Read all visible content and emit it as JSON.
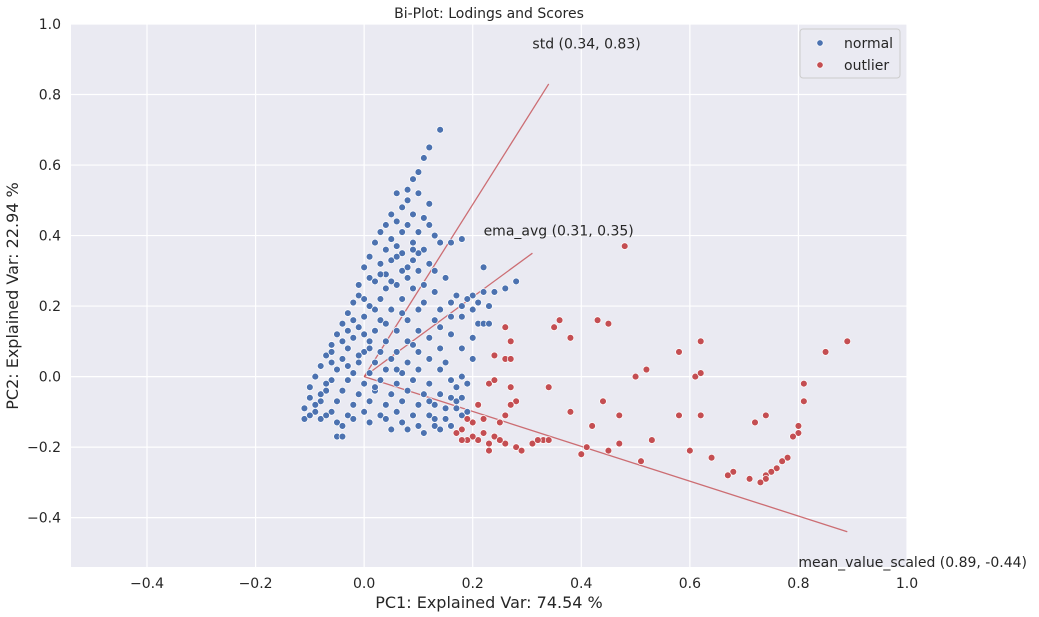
{
  "chart_data": {
    "type": "scatter",
    "title": "Bi-Plot: Lodings and Scores",
    "xlabel": "PC1: Explained Var: 74.54 %",
    "ylabel": "PC2: Explained Var: 22.94 %",
    "xlim": [
      -0.54,
      1.0
    ],
    "ylim": [
      -0.54,
      1.0
    ],
    "xticks": [
      -0.4,
      -0.2,
      0.0,
      0.2,
      0.4,
      0.6,
      0.8,
      1.0
    ],
    "xtick_labels": [
      "−0.4",
      "−0.2",
      "0.0",
      "0.2",
      "0.4",
      "0.6",
      "0.8",
      "1.0"
    ],
    "yticks": [
      -0.4,
      -0.2,
      0.0,
      0.2,
      0.4,
      0.6,
      0.8,
      1.0
    ],
    "ytick_labels": [
      "−0.4",
      "−0.2",
      "0.0",
      "0.2",
      "0.4",
      "0.6",
      "0.8",
      "1.0"
    ],
    "grid": true,
    "background": "#eaeaf2",
    "legend_position": "top-right",
    "series": [
      {
        "name": "normal",
        "color": "#4c72b0",
        "points": [
          [
            0.14,
            0.7
          ],
          [
            0.12,
            0.65
          ],
          [
            0.11,
            0.62
          ],
          [
            0.1,
            0.58
          ],
          [
            0.09,
            0.56
          ],
          [
            0.08,
            0.53
          ],
          [
            0.1,
            0.52
          ],
          [
            0.06,
            0.52
          ],
          [
            0.08,
            0.5
          ],
          [
            0.12,
            0.49
          ],
          [
            0.07,
            0.48
          ],
          [
            0.05,
            0.46
          ],
          [
            0.09,
            0.46
          ],
          [
            0.11,
            0.45
          ],
          [
            0.06,
            0.44
          ],
          [
            0.04,
            0.43
          ],
          [
            0.08,
            0.43
          ],
          [
            0.12,
            0.43
          ],
          [
            0.03,
            0.41
          ],
          [
            0.07,
            0.41
          ],
          [
            0.1,
            0.41
          ],
          [
            0.05,
            0.39
          ],
          [
            0.13,
            0.4
          ],
          [
            0.09,
            0.38
          ],
          [
            0.02,
            0.38
          ],
          [
            0.06,
            0.37
          ],
          [
            0.14,
            0.38
          ],
          [
            0.04,
            0.36
          ],
          [
            0.11,
            0.36
          ],
          [
            0.07,
            0.35
          ],
          [
            0.16,
            0.38
          ],
          [
            0.18,
            0.39
          ],
          [
            0.01,
            0.34
          ],
          [
            0.05,
            0.33
          ],
          [
            0.09,
            0.33
          ],
          [
            0.12,
            0.32
          ],
          [
            0.03,
            0.32
          ],
          [
            0.0,
            0.31
          ],
          [
            0.07,
            0.3
          ],
          [
            0.1,
            0.3
          ],
          [
            0.13,
            0.3
          ],
          [
            0.04,
            0.29
          ],
          [
            0.01,
            0.28
          ],
          [
            0.08,
            0.28
          ],
          [
            0.15,
            0.28
          ],
          [
            0.02,
            0.27
          ],
          [
            0.06,
            0.26
          ],
          [
            0.11,
            0.26
          ],
          [
            -0.01,
            0.26
          ],
          [
            0.04,
            0.25
          ],
          [
            0.09,
            0.25
          ],
          [
            0.13,
            0.24
          ],
          [
            -0.01,
            0.23
          ],
          [
            0.03,
            0.22
          ],
          [
            0.07,
            0.22
          ],
          [
            0.17,
            0.23
          ],
          [
            0.22,
            0.31
          ],
          [
            0.2,
            0.23
          ],
          [
            0.24,
            0.24
          ],
          [
            0.26,
            0.25
          ],
          [
            0.28,
            0.27
          ],
          [
            0.22,
            0.24
          ],
          [
            0.19,
            0.22
          ],
          [
            0.21,
            0.21
          ],
          [
            -0.02,
            0.21
          ],
          [
            0.01,
            0.2
          ],
          [
            0.05,
            0.19
          ],
          [
            0.1,
            0.19
          ],
          [
            0.16,
            0.21
          ],
          [
            0.18,
            0.2
          ],
          [
            0.2,
            0.19
          ],
          [
            0.23,
            0.2
          ],
          [
            -0.03,
            0.18
          ],
          [
            0.0,
            0.17
          ],
          [
            0.03,
            0.16
          ],
          [
            0.08,
            0.16
          ],
          [
            0.13,
            0.16
          ],
          [
            0.16,
            0.17
          ],
          [
            0.18,
            0.17
          ],
          [
            0.21,
            0.15
          ],
          [
            -0.04,
            0.15
          ],
          [
            -0.01,
            0.14
          ],
          [
            0.02,
            0.13
          ],
          [
            0.06,
            0.13
          ],
          [
            0.1,
            0.13
          ],
          [
            0.14,
            0.14
          ],
          [
            0.22,
            0.15
          ],
          [
            0.23,
            0.15
          ],
          [
            -0.05,
            0.12
          ],
          [
            -0.02,
            0.11
          ],
          [
            0.01,
            0.1
          ],
          [
            0.04,
            0.1
          ],
          [
            0.08,
            0.1
          ],
          [
            0.12,
            0.11
          ],
          [
            0.16,
            0.12
          ],
          [
            0.2,
            0.11
          ],
          [
            -0.06,
            0.09
          ],
          [
            -0.03,
            0.08
          ],
          [
            0.0,
            0.07
          ],
          [
            0.03,
            0.07
          ],
          [
            0.06,
            0.07
          ],
          [
            0.1,
            0.07
          ],
          [
            0.14,
            0.08
          ],
          [
            0.18,
            0.08
          ],
          [
            -0.07,
            0.06
          ],
          [
            -0.04,
            0.05
          ],
          [
            -0.01,
            0.04
          ],
          [
            0.02,
            0.04
          ],
          [
            0.05,
            0.05
          ],
          [
            0.08,
            0.04
          ],
          [
            0.12,
            0.05
          ],
          [
            0.2,
            0.05
          ],
          [
            -0.08,
            0.03
          ],
          [
            -0.05,
            0.02
          ],
          [
            -0.02,
            0.01
          ],
          [
            0.01,
            0.01
          ],
          [
            0.04,
            0.02
          ],
          [
            0.07,
            0.01
          ],
          [
            0.1,
            0.02
          ],
          [
            0.14,
            0.02
          ],
          [
            -0.09,
            0.0
          ],
          [
            -0.06,
            -0.01
          ],
          [
            -0.03,
            -0.01
          ],
          [
            0.0,
            -0.02
          ],
          [
            0.03,
            -0.01
          ],
          [
            0.06,
            -0.02
          ],
          [
            0.09,
            -0.01
          ],
          [
            0.12,
            -0.02
          ],
          [
            0.16,
            -0.01
          ],
          [
            0.18,
            0.0
          ],
          [
            0.17,
            -0.03
          ],
          [
            0.19,
            -0.02
          ],
          [
            -0.1,
            -0.03
          ],
          [
            -0.07,
            -0.04
          ],
          [
            -0.04,
            -0.04
          ],
          [
            -0.01,
            -0.05
          ],
          [
            0.02,
            -0.04
          ],
          [
            0.05,
            -0.05
          ],
          [
            0.08,
            -0.04
          ],
          [
            0.11,
            -0.05
          ],
          [
            0.14,
            -0.05
          ],
          [
            0.16,
            -0.06
          ],
          [
            -0.1,
            -0.06
          ],
          [
            -0.08,
            -0.07
          ],
          [
            -0.05,
            -0.07
          ],
          [
            -0.02,
            -0.08
          ],
          [
            0.01,
            -0.07
          ],
          [
            0.04,
            -0.08
          ],
          [
            0.07,
            -0.07
          ],
          [
            0.1,
            -0.08
          ],
          [
            0.13,
            -0.08
          ],
          [
            0.17,
            -0.09
          ],
          [
            -0.11,
            -0.09
          ],
          [
            -0.09,
            -0.1
          ],
          [
            -0.06,
            -0.1
          ],
          [
            -0.03,
            -0.11
          ],
          [
            0.0,
            -0.1
          ],
          [
            0.03,
            -0.11
          ],
          [
            0.06,
            -0.1
          ],
          [
            0.09,
            -0.11
          ],
          [
            0.12,
            -0.11
          ],
          [
            0.15,
            -0.12
          ],
          [
            0.18,
            -0.11
          ],
          [
            -0.11,
            -0.12
          ],
          [
            -0.08,
            -0.12
          ],
          [
            -0.05,
            -0.13
          ],
          [
            -0.02,
            -0.12
          ],
          [
            0.01,
            -0.13
          ],
          [
            0.04,
            -0.12
          ],
          [
            0.07,
            -0.13
          ],
          [
            0.1,
            -0.14
          ],
          [
            0.13,
            -0.14
          ],
          [
            -0.1,
            -0.11
          ],
          [
            -0.07,
            -0.11
          ],
          [
            -0.04,
            -0.14
          ],
          [
            0.05,
            -0.15
          ],
          [
            0.08,
            -0.15
          ],
          [
            0.11,
            -0.16
          ],
          [
            0.14,
            -0.15
          ],
          [
            0.16,
            -0.14
          ],
          [
            -0.05,
            -0.17
          ],
          [
            -0.04,
            -0.17
          ],
          [
            -0.08,
            -0.05
          ],
          [
            -0.06,
            0.04
          ],
          [
            -0.03,
            0.13
          ],
          [
            -0.01,
            0.06
          ],
          [
            0.02,
            -0.03
          ],
          [
            0.15,
            0.04
          ],
          [
            0.12,
            -0.07
          ],
          [
            0.17,
            -0.07
          ],
          [
            0.05,
            0.27
          ],
          [
            0.08,
            0.31
          ],
          [
            0.1,
            0.35
          ],
          [
            0.03,
            0.29
          ],
          [
            0.06,
            0.34
          ],
          [
            0.09,
            0.36
          ],
          [
            0.0,
            0.22
          ],
          [
            0.02,
            0.19
          ],
          [
            -0.02,
            0.16
          ],
          [
            0.04,
            0.15
          ],
          [
            0.11,
            0.21
          ],
          [
            0.14,
            0.19
          ],
          [
            0.07,
            0.18
          ],
          [
            -0.04,
            0.1
          ],
          [
            -0.06,
            0.07
          ],
          [
            0.0,
            0.12
          ],
          [
            0.06,
            0.02
          ],
          [
            0.13,
            -0.12
          ],
          [
            0.15,
            -0.09
          ],
          [
            0.18,
            -0.06
          ],
          [
            0.19,
            -0.1
          ],
          [
            -0.09,
            -0.08
          ],
          [
            -0.07,
            -0.02
          ],
          [
            -0.03,
            0.03
          ],
          [
            0.01,
            0.08
          ],
          [
            0.09,
            0.09
          ]
        ]
      },
      {
        "name": "outlier",
        "color": "#c44e52",
        "points": [
          [
            0.48,
            0.37
          ],
          [
            0.89,
            0.1
          ],
          [
            0.85,
            0.07
          ],
          [
            0.62,
            0.1
          ],
          [
            0.58,
            0.07
          ],
          [
            0.52,
            0.02
          ],
          [
            0.5,
            0.0
          ],
          [
            0.61,
            0.0
          ],
          [
            0.62,
            0.01
          ],
          [
            0.81,
            -0.02
          ],
          [
            0.81,
            -0.07
          ],
          [
            0.8,
            -0.14
          ],
          [
            0.8,
            -0.16
          ],
          [
            0.79,
            -0.17
          ],
          [
            0.78,
            -0.23
          ],
          [
            0.77,
            -0.24
          ],
          [
            0.76,
            -0.26
          ],
          [
            0.75,
            -0.27
          ],
          [
            0.74,
            -0.28
          ],
          [
            0.74,
            -0.29
          ],
          [
            0.73,
            -0.3
          ],
          [
            0.71,
            -0.29
          ],
          [
            0.68,
            -0.27
          ],
          [
            0.67,
            -0.28
          ],
          [
            0.64,
            -0.23
          ],
          [
            0.6,
            -0.21
          ],
          [
            0.74,
            -0.11
          ],
          [
            0.72,
            -0.13
          ],
          [
            0.62,
            -0.11
          ],
          [
            0.58,
            -0.11
          ],
          [
            0.53,
            -0.18
          ],
          [
            0.51,
            -0.24
          ],
          [
            0.47,
            -0.19
          ],
          [
            0.45,
            -0.21
          ],
          [
            0.44,
            -0.07
          ],
          [
            0.47,
            -0.11
          ],
          [
            0.42,
            -0.14
          ],
          [
            0.41,
            -0.2
          ],
          [
            0.4,
            -0.22
          ],
          [
            0.38,
            -0.1
          ],
          [
            0.34,
            -0.03
          ],
          [
            0.36,
            0.16
          ],
          [
            0.43,
            0.16
          ],
          [
            0.45,
            0.15
          ],
          [
            0.35,
            0.14
          ],
          [
            0.38,
            0.11
          ],
          [
            0.26,
            0.14
          ],
          [
            0.26,
            0.05
          ],
          [
            0.27,
            0.05
          ],
          [
            0.27,
            0.1
          ],
          [
            0.24,
            0.06
          ],
          [
            0.23,
            -0.02
          ],
          [
            0.24,
            -0.01
          ],
          [
            0.27,
            -0.03
          ],
          [
            0.28,
            -0.07
          ],
          [
            0.27,
            -0.08
          ],
          [
            0.26,
            -0.11
          ],
          [
            0.25,
            -0.13
          ],
          [
            0.24,
            -0.17
          ],
          [
            0.23,
            -0.19
          ],
          [
            0.22,
            -0.12
          ],
          [
            0.22,
            -0.16
          ],
          [
            0.21,
            -0.18
          ],
          [
            0.2,
            -0.13
          ],
          [
            0.2,
            -0.17
          ],
          [
            0.19,
            -0.18
          ],
          [
            0.18,
            -0.18
          ],
          [
            0.18,
            -0.15
          ],
          [
            0.17,
            -0.16
          ],
          [
            0.19,
            -0.12
          ],
          [
            0.21,
            -0.08
          ],
          [
            0.28,
            -0.2
          ],
          [
            0.29,
            -0.21
          ],
          [
            0.31,
            -0.19
          ],
          [
            0.33,
            -0.18
          ],
          [
            0.34,
            -0.18
          ],
          [
            0.32,
            -0.18
          ],
          [
            0.26,
            -0.19
          ],
          [
            0.25,
            -0.18
          ],
          [
            0.23,
            -0.21
          ]
        ]
      }
    ],
    "loadings": [
      {
        "label": "std (0.34, 0.83)",
        "x": 0.34,
        "y": 0.83,
        "color": "#c44e52"
      },
      {
        "label": "ema_avg (0.31, 0.35)",
        "x": 0.31,
        "y": 0.35,
        "color": "#c44e52"
      },
      {
        "label": "mean_value_scaled (0.89, -0.44)",
        "x": 0.89,
        "y": -0.44,
        "color": "#c44e52"
      }
    ]
  }
}
